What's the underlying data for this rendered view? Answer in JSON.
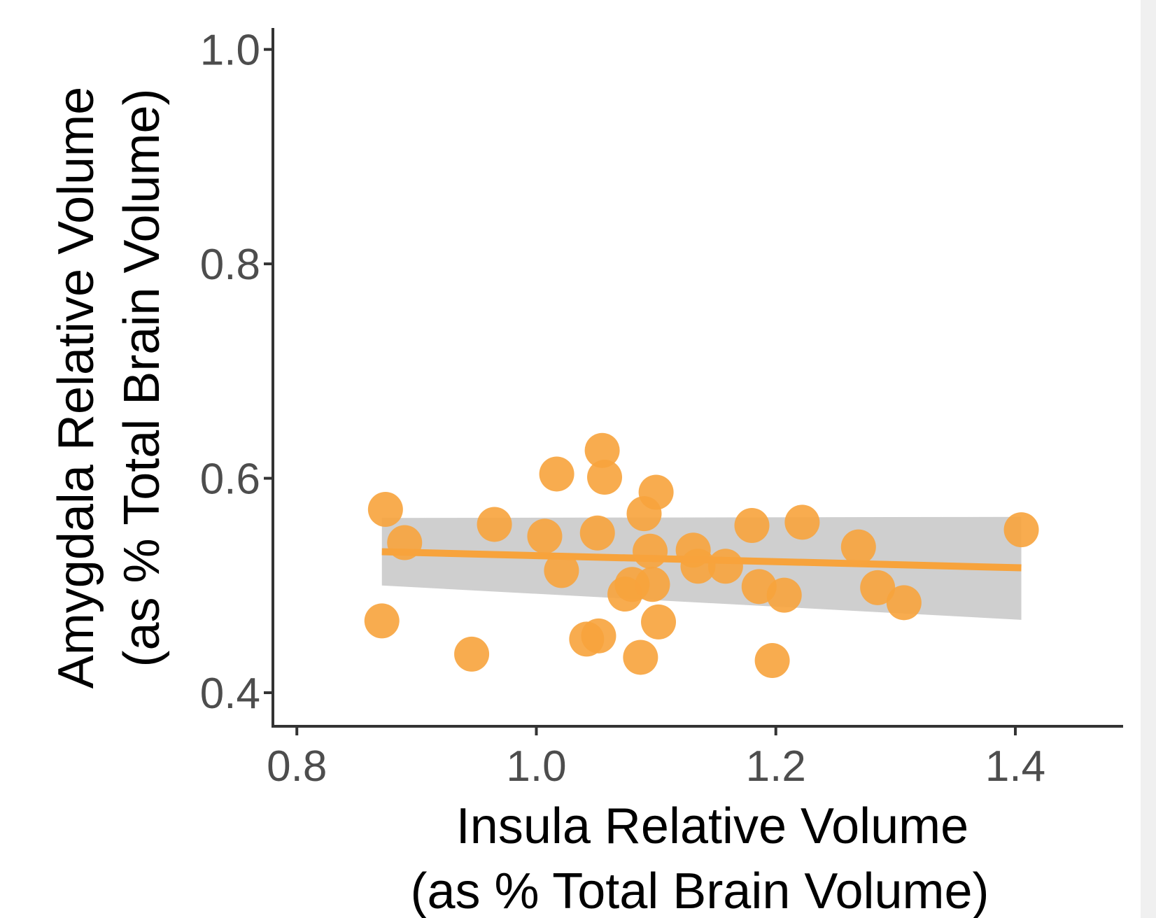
{
  "chart_data": {
    "type": "scatter",
    "title": "",
    "xlabel": [
      "Insula Relative Volume",
      "(as % Total Brain Volume)"
    ],
    "ylabel": [
      "Amygdala Relative Volume",
      "(as % Total Brain Volume)"
    ],
    "xlim": [
      0.78,
      1.49
    ],
    "ylim": [
      0.37,
      1.02
    ],
    "x_ticks": [
      0.8,
      1.0,
      1.2,
      1.4
    ],
    "x_tick_labels": [
      "0.8",
      "1.0",
      "1.2",
      "1.4"
    ],
    "y_ticks": [
      0.4,
      0.6,
      0.8,
      1.0
    ],
    "y_tick_labels": [
      "0.4",
      "0.6",
      "0.8",
      "1.0"
    ],
    "grid": false,
    "legend": "none",
    "colors": {
      "points": "#f7a33c",
      "fit_line": "#f7a33c",
      "confidence_band": "#bfbfbf",
      "axis": "#333333",
      "tick_text": "#4d4d4d"
    },
    "series": [
      {
        "points": [
          {
            "x": 0.874,
            "y": 0.571
          },
          {
            "x": 0.89,
            "y": 0.54
          },
          {
            "x": 0.871,
            "y": 0.467
          },
          {
            "x": 0.946,
            "y": 0.436
          },
          {
            "x": 0.965,
            "y": 0.557
          },
          {
            "x": 1.007,
            "y": 0.546
          },
          {
            "x": 1.021,
            "y": 0.514
          },
          {
            "x": 1.017,
            "y": 0.604
          },
          {
            "x": 1.042,
            "y": 0.45
          },
          {
            "x": 1.052,
            "y": 0.453
          },
          {
            "x": 1.051,
            "y": 0.549
          },
          {
            "x": 1.055,
            "y": 0.626
          },
          {
            "x": 1.057,
            "y": 0.601
          },
          {
            "x": 1.074,
            "y": 0.492
          },
          {
            "x": 1.08,
            "y": 0.501
          },
          {
            "x": 1.087,
            "y": 0.433
          },
          {
            "x": 1.09,
            "y": 0.567
          },
          {
            "x": 1.095,
            "y": 0.532
          },
          {
            "x": 1.097,
            "y": 0.501
          },
          {
            "x": 1.1,
            "y": 0.587
          },
          {
            "x": 1.102,
            "y": 0.466
          },
          {
            "x": 1.131,
            "y": 0.533
          },
          {
            "x": 1.135,
            "y": 0.518
          },
          {
            "x": 1.158,
            "y": 0.518
          },
          {
            "x": 1.18,
            "y": 0.556
          },
          {
            "x": 1.186,
            "y": 0.499
          },
          {
            "x": 1.197,
            "y": 0.43
          },
          {
            "x": 1.207,
            "y": 0.491
          },
          {
            "x": 1.222,
            "y": 0.559
          },
          {
            "x": 1.269,
            "y": 0.536
          },
          {
            "x": 1.285,
            "y": 0.498
          },
          {
            "x": 1.307,
            "y": 0.484
          },
          {
            "x": 1.405,
            "y": 0.552
          }
        ]
      }
    ],
    "fit": {
      "x": [
        0.871,
        1.405
      ],
      "y": [
        0.5315,
        0.5165
      ],
      "band_lower": [
        0.5,
        0.468
      ],
      "band_upper": [
        0.563,
        0.564
      ]
    }
  }
}
